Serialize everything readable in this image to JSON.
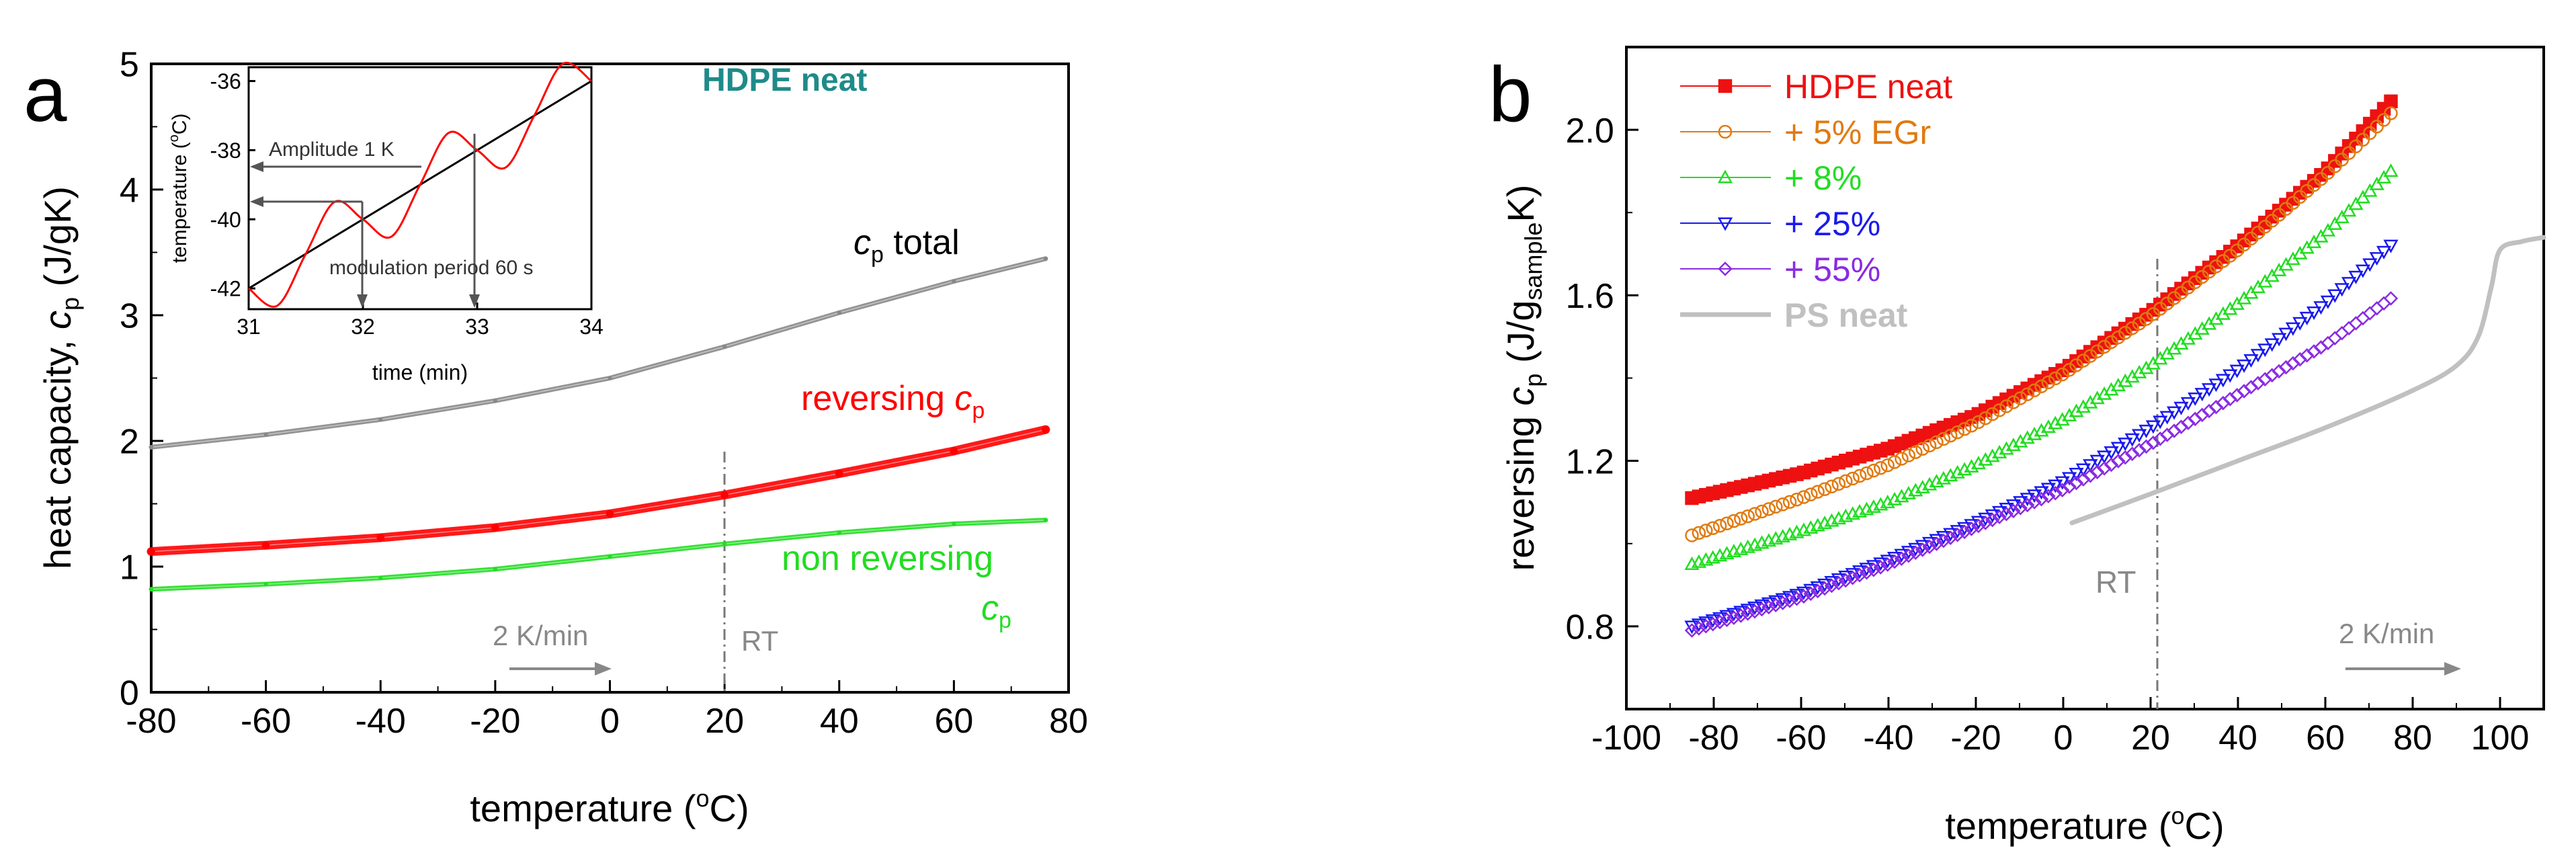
{
  "panel_a": {
    "letter": "a",
    "title": "HDPE neat",
    "ylabel_prefix": "heat capacity, ",
    "ylabel_sym": "c",
    "ylabel_sub": "p",
    "ylabel_unit": " (J/gK)",
    "xlabel_prefix": "temperature (",
    "xlabel_sup": "o",
    "xlabel_suffix": "C)",
    "label_total_sym": "c",
    "label_total_sub": "p",
    "label_total_word": " total",
    "label_rev_word": "reversing ",
    "label_rev_sym": "c",
    "label_rev_sub": "p",
    "label_nonrev_word": "non reversing",
    "label_nonrev_sym": "c",
    "label_nonrev_sub": "p",
    "rate": "2 K/min",
    "rt": "RT",
    "inset": {
      "ylabel_prefix": "temperature (",
      "ylabel_sup": "o",
      "ylabel_suffix": "C)",
      "xlabel": "time (min)",
      "amplitude": "Amplitude 1 K",
      "period": "modulation period 60 s"
    }
  },
  "panel_b": {
    "letter": "b",
    "ylabel_prefix": "reversing ",
    "ylabel_sym": "c",
    "ylabel_sub": "p",
    "ylabel_mid": " (J/g",
    "ylabel_sub2": "sample",
    "ylabel_end": "K)",
    "xlabel_prefix": "temperature (",
    "xlabel_sup": "o",
    "xlabel_suffix": "C)",
    "rt": "RT",
    "rate": "2 K/min",
    "ps_label": "PS neat"
  },
  "chart_data": [
    {
      "type": "line",
      "title": "HDPE neat",
      "xlabel": "temperature (oC)",
      "ylabel": "heat capacity, cp (J/gK)",
      "xlim": [
        -80,
        80
      ],
      "ylim": [
        0,
        5
      ],
      "xticks": [
        -80,
        -60,
        -40,
        -20,
        0,
        20,
        40,
        60,
        80
      ],
      "yticks": [
        0,
        1,
        2,
        3,
        4,
        5
      ],
      "series": [
        {
          "name": "cp total",
          "color": "#888888",
          "x": [
            -80,
            -60,
            -40,
            -20,
            0,
            20,
            40,
            60,
            76
          ],
          "y": [
            1.95,
            2.05,
            2.17,
            2.32,
            2.5,
            2.75,
            3.02,
            3.27,
            3.45
          ]
        },
        {
          "name": "reversing cp",
          "color": "#ff0000",
          "x": [
            -80,
            -60,
            -40,
            -20,
            0,
            20,
            40,
            60,
            76
          ],
          "y": [
            1.12,
            1.17,
            1.23,
            1.31,
            1.42,
            1.57,
            1.74,
            1.92,
            2.09
          ]
        },
        {
          "name": "non reversing cp",
          "color": "#22dd22",
          "x": [
            -80,
            -60,
            -40,
            -20,
            0,
            20,
            40,
            60,
            76
          ],
          "y": [
            0.82,
            0.86,
            0.91,
            0.98,
            1.08,
            1.18,
            1.27,
            1.34,
            1.37
          ]
        }
      ]
    },
    {
      "type": "line",
      "title": "",
      "xlabel": "time (min)",
      "ylabel": "temperature (oC)",
      "xlim": [
        31,
        34
      ],
      "ylim": [
        -42.6,
        -35.6
      ],
      "xticks": [
        31,
        32,
        33,
        34
      ],
      "yticks": [
        -42,
        -40,
        -38,
        -36
      ],
      "series": [
        {
          "name": "",
          "color": "#000000",
          "x": [
            31,
            34
          ],
          "y": [
            -42.0,
            -36.0
          ]
        },
        {
          "name": "",
          "color": "#ff0000",
          "x": [
            31.0,
            31.25,
            31.5,
            31.75,
            32.0,
            32.25,
            32.5,
            32.75,
            33.0,
            33.25,
            33.5,
            33.75,
            34.0
          ],
          "y": [
            -42.0,
            -42.5,
            -41.0,
            -39.5,
            -40.0,
            -40.5,
            -39.0,
            -37.5,
            -38.0,
            -38.5,
            -37.0,
            -35.5,
            -36.0
          ]
        }
      ]
    },
    {
      "type": "scatter",
      "title": "",
      "xlabel": "temperature (oC)",
      "ylabel": "reversing cp (J/gsampleK)",
      "xlim": [
        -100,
        110
      ],
      "ylim": [
        0.6,
        2.2
      ],
      "xticks": [
        -100,
        -80,
        -60,
        -40,
        -20,
        0,
        20,
        40,
        60,
        80,
        100
      ],
      "yticks": [
        0.8,
        1.2,
        1.6,
        2.0
      ],
      "legend": "top-left",
      "series": [
        {
          "name": "HDPE neat",
          "color": "#ee1111",
          "marker": "square",
          "x": [
            -85,
            -60,
            -40,
            -20,
            0,
            20,
            40,
            60,
            76
          ],
          "y": [
            1.11,
            1.17,
            1.23,
            1.31,
            1.42,
            1.56,
            1.72,
            1.9,
            2.08
          ]
        },
        {
          "name": "+ 5% EGr",
          "color": "#e07a10",
          "marker": "circle",
          "x": [
            -85,
            -60,
            -40,
            -20,
            0,
            20,
            40,
            60,
            76
          ],
          "y": [
            1.02,
            1.11,
            1.19,
            1.29,
            1.41,
            1.55,
            1.71,
            1.89,
            2.05
          ]
        },
        {
          "name": "+ 8%",
          "color": "#22dd22",
          "marker": "triangle-up",
          "x": [
            -85,
            -60,
            -40,
            -20,
            0,
            20,
            40,
            60,
            76
          ],
          "y": [
            0.95,
            1.03,
            1.1,
            1.19,
            1.3,
            1.43,
            1.58,
            1.75,
            1.91
          ]
        },
        {
          "name": "+ 25%",
          "color": "#1a1aee",
          "marker": "triangle-down",
          "x": [
            -85,
            -60,
            -40,
            -20,
            0,
            20,
            40,
            60,
            76
          ],
          "y": [
            0.8,
            0.88,
            0.96,
            1.05,
            1.15,
            1.28,
            1.42,
            1.58,
            1.73
          ]
        },
        {
          "name": "+ 55%",
          "color": "#8a2be2",
          "marker": "diamond",
          "x": [
            -85,
            -60,
            -40,
            -20,
            0,
            20,
            40,
            60,
            76
          ],
          "y": [
            0.79,
            0.87,
            0.95,
            1.04,
            1.13,
            1.24,
            1.36,
            1.48,
            1.6
          ]
        },
        {
          "name": "PS neat",
          "color": "#c0c0c0",
          "marker": "line",
          "x": [
            2,
            20,
            40,
            60,
            80,
            90,
            95,
            98,
            100,
            105,
            110
          ],
          "y": [
            1.05,
            1.12,
            1.2,
            1.28,
            1.37,
            1.43,
            1.5,
            1.62,
            1.71,
            1.73,
            1.74
          ]
        }
      ]
    }
  ]
}
